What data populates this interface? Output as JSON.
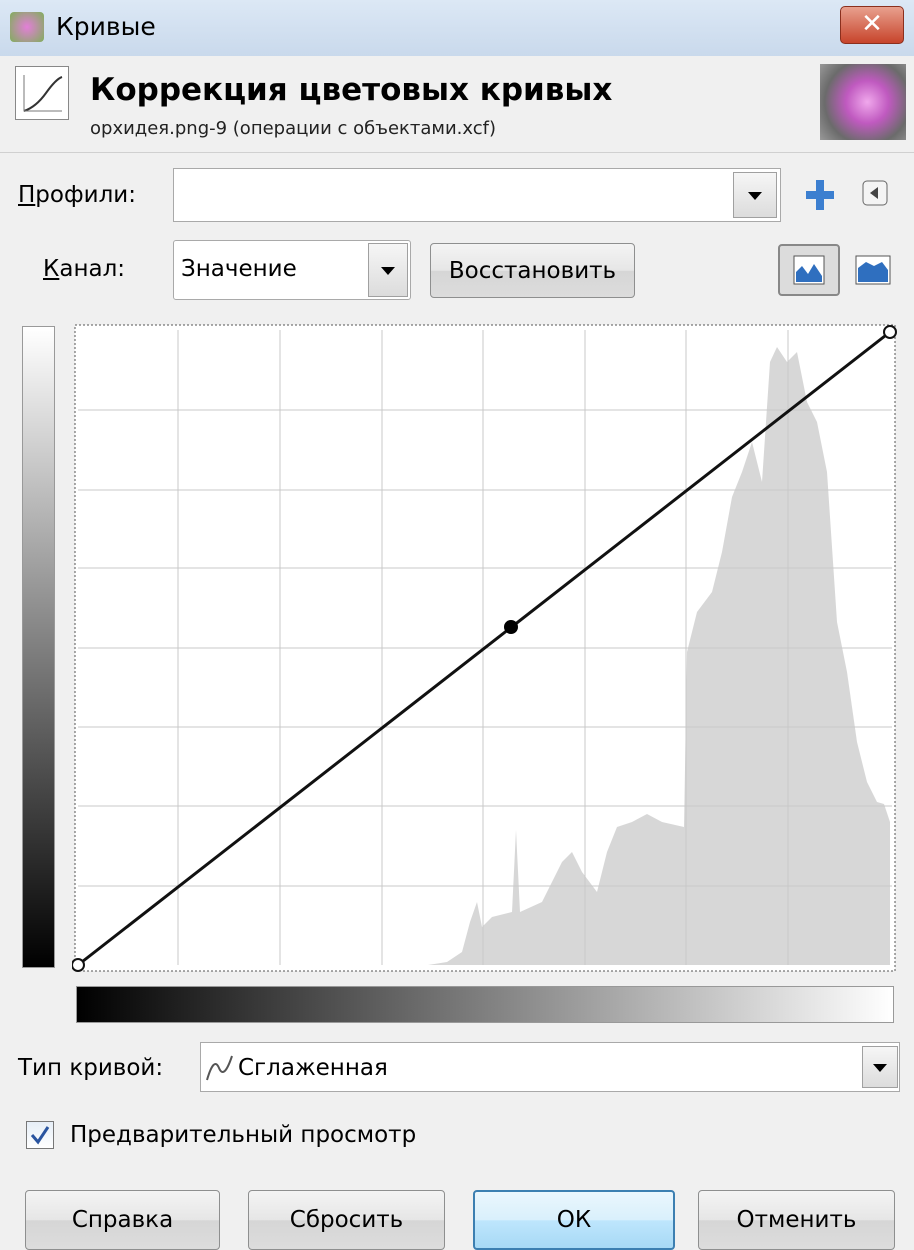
{
  "window": {
    "title": "Кривые"
  },
  "header": {
    "title": "Коррекция цветовых кривых",
    "subtitle": "орхидея.png-9 (операции с объектами.xcf)"
  },
  "form": {
    "presets_label": "Профили:",
    "channel_label": "Канал:",
    "channel_value": "Значение",
    "reset_channel": "Восстановить",
    "curve_type_label": "Тип кривой:",
    "curve_type_value": "Сглаженная",
    "preview_label": "Предварительный просмотр"
  },
  "buttons": [
    "Справка",
    "Сбросить",
    "ОК",
    "Отменить"
  ]
}
